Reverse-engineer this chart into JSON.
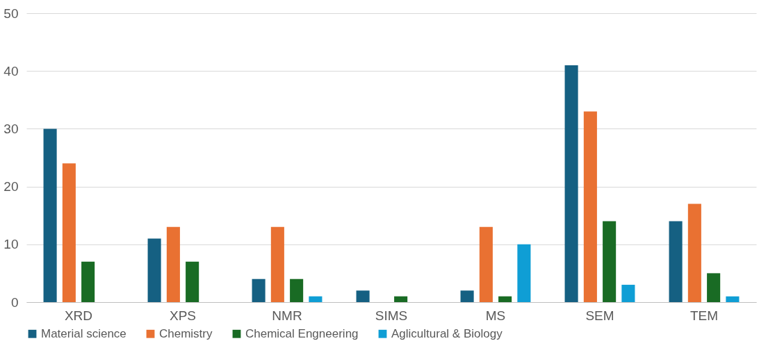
{
  "chart_data": {
    "type": "bar",
    "categories": [
      "XRD",
      "XPS",
      "NMR",
      "SIMS",
      "MS",
      "SEM",
      "TEM"
    ],
    "series": [
      {
        "name": "Material science",
        "color": "#156082",
        "values": [
          30,
          11,
          4,
          2,
          2,
          41,
          14
        ]
      },
      {
        "name": "Chemistry",
        "color": "#e97132",
        "values": [
          24,
          13,
          13,
          0,
          13,
          33,
          17
        ]
      },
      {
        "name": "Chemical Engneering",
        "color": "#196b24",
        "values": [
          7,
          7,
          4,
          1,
          1,
          14,
          5
        ]
      },
      {
        "name": "Aglicultural & Biology",
        "color": "#0f9ed5",
        "values": [
          0,
          0,
          1,
          0,
          10,
          3,
          1
        ]
      }
    ],
    "ylim": [
      0,
      50
    ],
    "yticks": [
      0,
      10,
      20,
      30,
      40,
      50
    ],
    "grid": "y",
    "legend": "bottom"
  }
}
